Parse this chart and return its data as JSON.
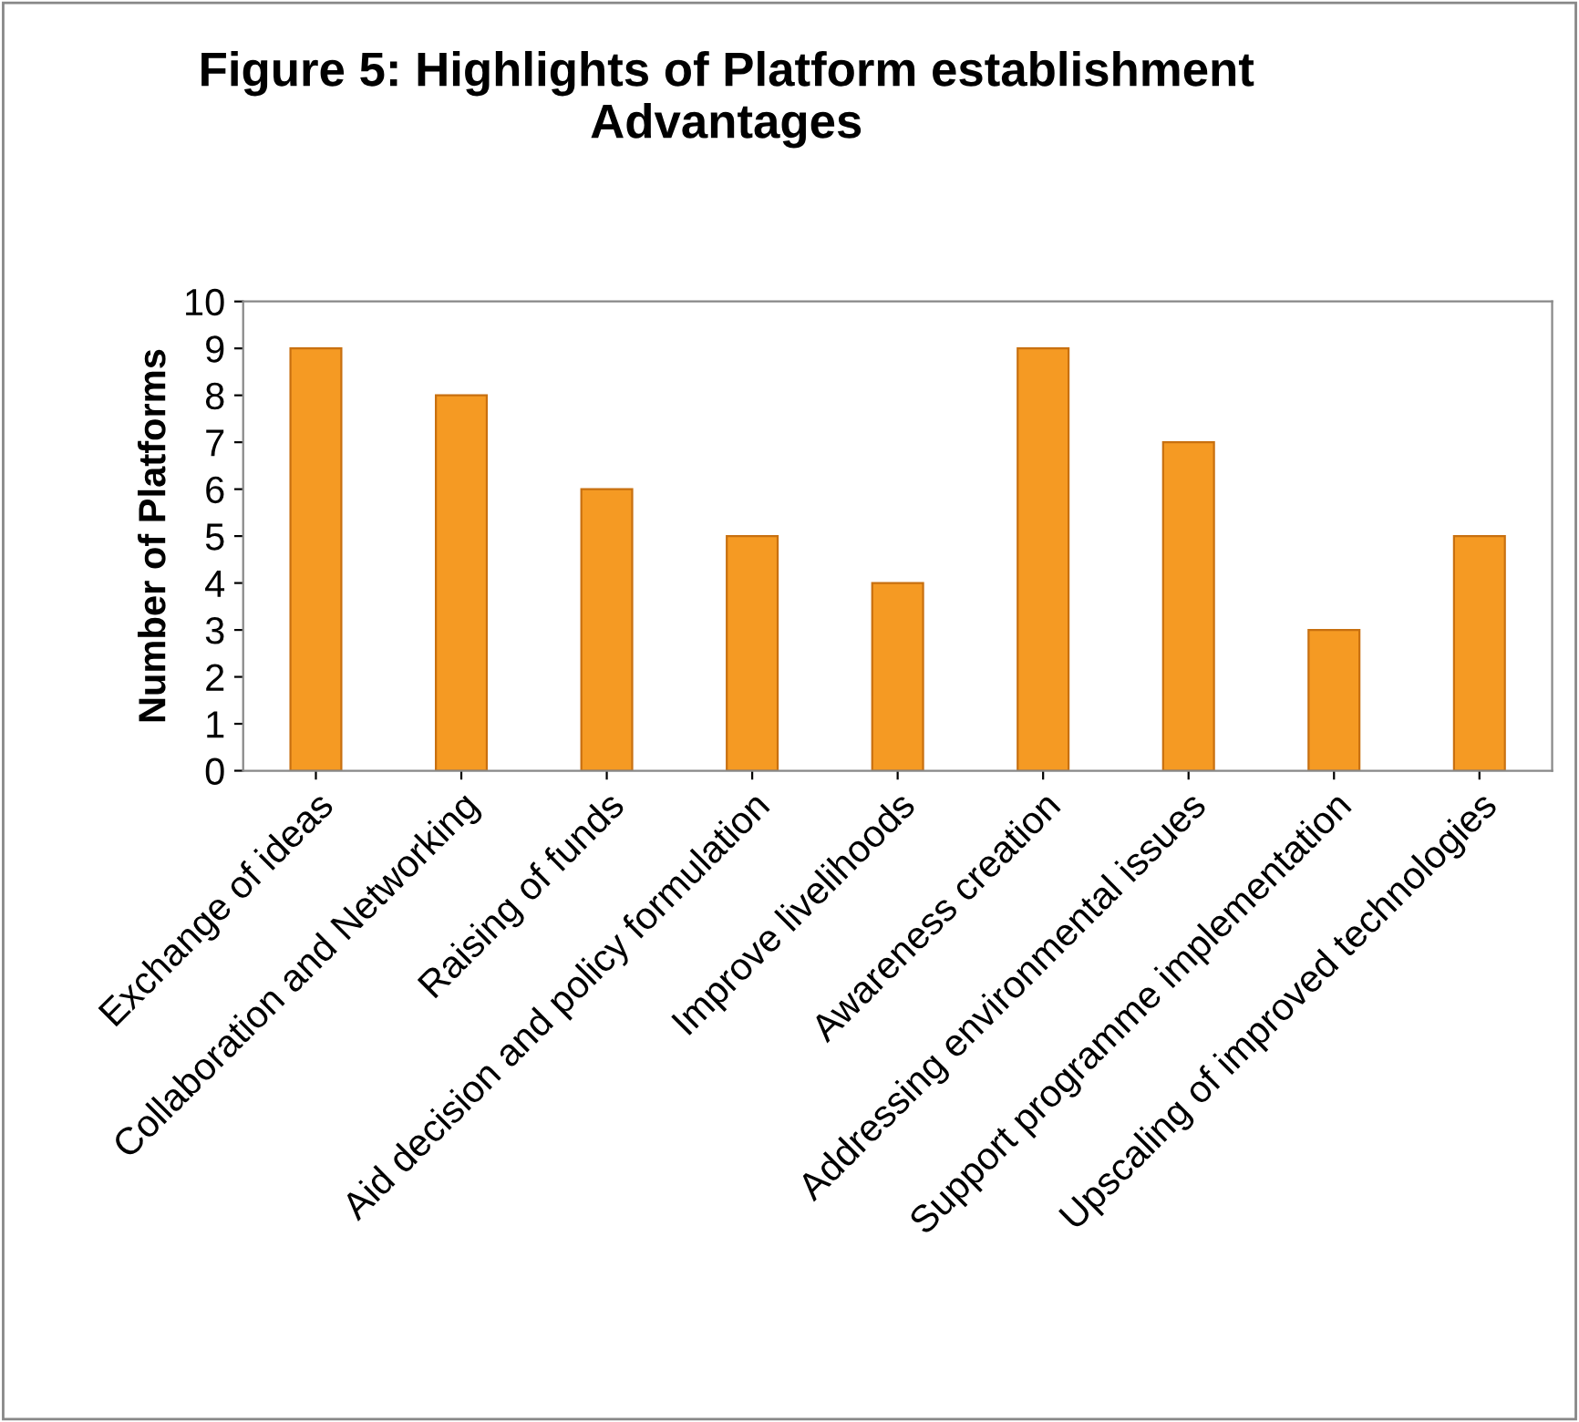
{
  "chart_data": {
    "type": "bar",
    "title": "Figure 5: Highlights of Platform establishment\nAdvantages",
    "ylabel": "Number of Platforms",
    "categories": [
      "Exchange of ideas",
      "Collaboration and Networking",
      "Raising of funds",
      "Aid decision and policy formulation",
      "Improve livelihoods",
      "Awareness creation",
      "Addressing environmental issues",
      "Support programme implementation",
      "Upscaling of improved technologies"
    ],
    "values": [
      9,
      8,
      6,
      5,
      4,
      9,
      7,
      3,
      5
    ],
    "color": "#f59a23",
    "ylim": [
      0,
      10
    ],
    "yticks": [
      0,
      1,
      2,
      3,
      4,
      5,
      6,
      7,
      8,
      9,
      10
    ],
    "grid": false,
    "legend": false
  }
}
